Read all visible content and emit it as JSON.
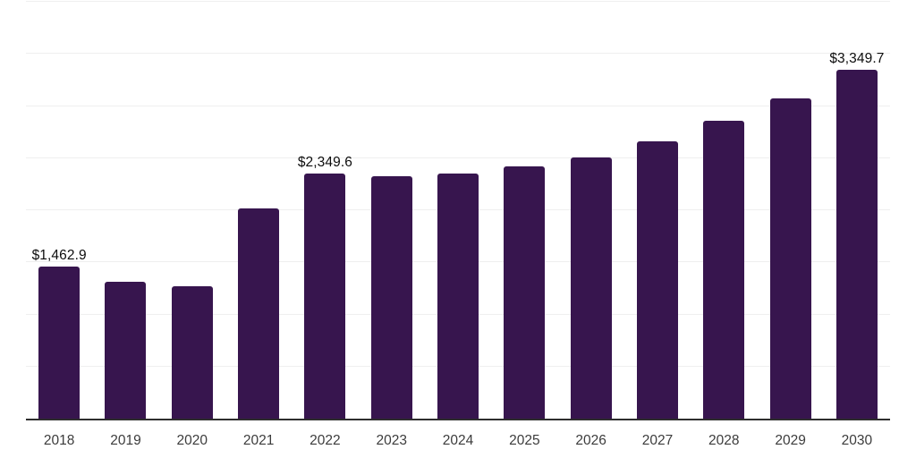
{
  "chart_data": {
    "type": "bar",
    "title": "",
    "xlabel": "",
    "ylabel": "",
    "categories": [
      "2018",
      "2019",
      "2020",
      "2021",
      "2022",
      "2023",
      "2024",
      "2025",
      "2026",
      "2027",
      "2028",
      "2029",
      "2030"
    ],
    "values": [
      1462.9,
      1315,
      1270,
      2020,
      2349.6,
      2325,
      2355,
      2420,
      2505,
      2665,
      2860,
      3070,
      3349.7
    ],
    "value_labels": {
      "0": "$1,462.9",
      "4": "$2,349.6",
      "12": "$3,349.7"
    },
    "ylim": [
      0,
      4000
    ],
    "grid_step": 500,
    "grid": "horizontal",
    "legend": false
  },
  "style": {
    "bar_color": "#37154E",
    "grid_color": "#efefef",
    "axis_line_color": "#2e2e2e",
    "value_label_color": "#0d0d0d",
    "tick_label_color": "#3c3c3c",
    "background": "#ffffff"
  }
}
